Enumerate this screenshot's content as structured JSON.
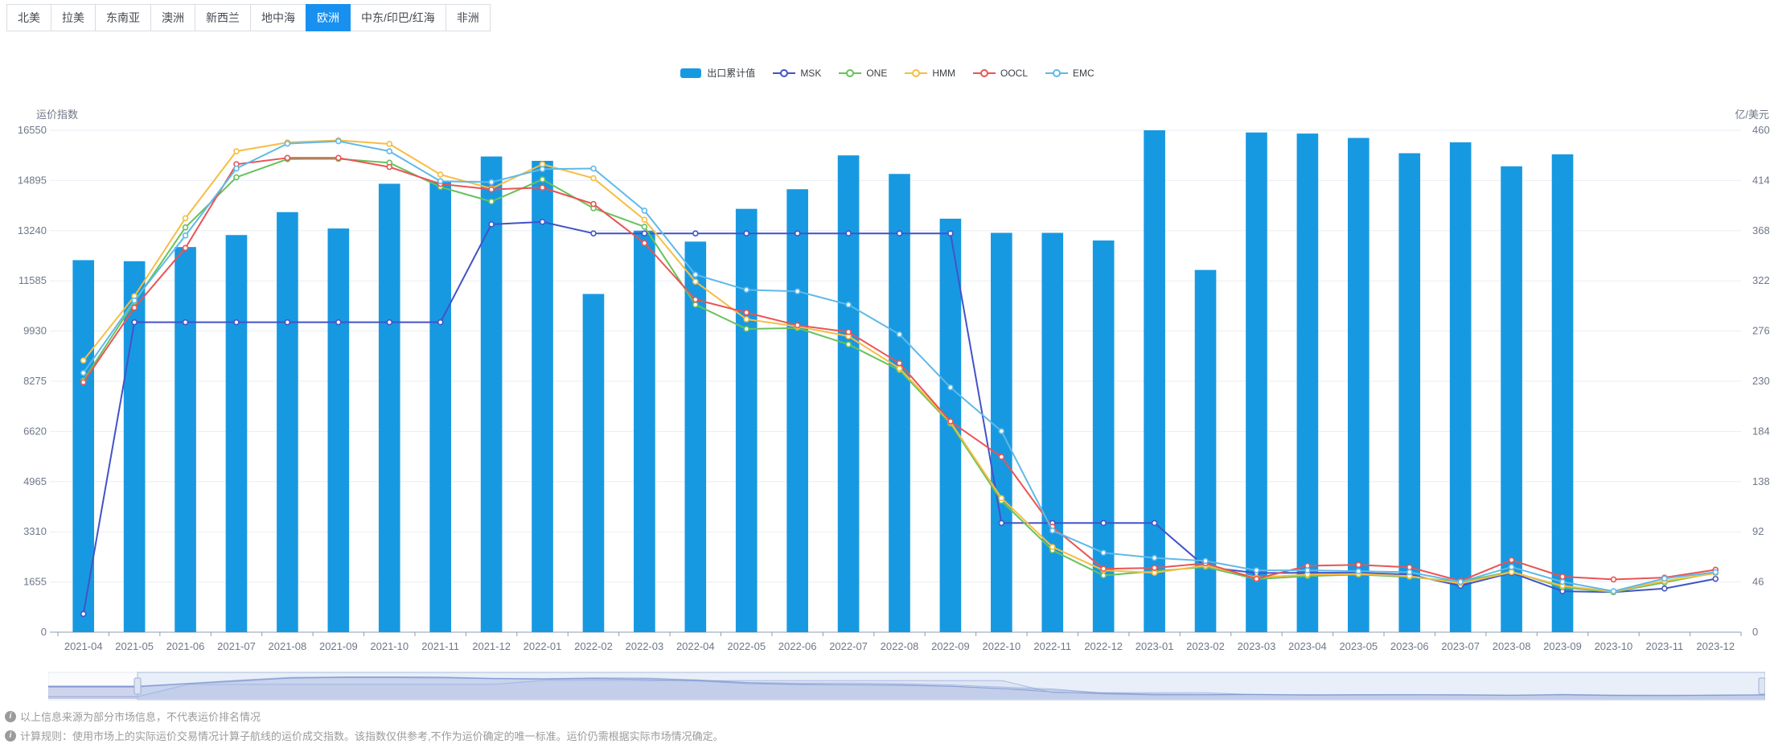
{
  "tabs": {
    "active_index": 6,
    "items": [
      {
        "label": "北美"
      },
      {
        "label": "拉美"
      },
      {
        "label": "东南亚"
      },
      {
        "label": "澳洲"
      },
      {
        "label": "新西兰"
      },
      {
        "label": "地中海"
      },
      {
        "label": "欧洲"
      },
      {
        "label": "中东/印巴/红海"
      },
      {
        "label": "非洲"
      }
    ]
  },
  "colors": {
    "tab_active_bg": "#1890f0",
    "bar": "#1799e1",
    "grid_line": "#e9edf4",
    "axis_line": "#8f9cb1",
    "axis_text": "#6e7889",
    "footnote_text": "#9b9b9b",
    "slider_window_fill": "rgba(190,208,240,0.30)",
    "slider_window_border": "#adbdda",
    "slider_line": "rgba(100,125,195,0.55)"
  },
  "chart_data": {
    "type": "bar+line",
    "categories": [
      "2021-04",
      "2021-05",
      "2021-06",
      "2021-07",
      "2021-08",
      "2021-09",
      "2021-10",
      "2021-11",
      "2021-12",
      "2022-01",
      "2022-02",
      "2022-03",
      "2022-04",
      "2022-05",
      "2022-06",
      "2022-07",
      "2022-08",
      "2022-09",
      "2022-10",
      "2022-11",
      "2022-12",
      "2023-01",
      "2023-02",
      "2023-03",
      "2023-04",
      "2023-05",
      "2023-06",
      "2023-07",
      "2023-08",
      "2023-09",
      "2023-10",
      "2023-11",
      "2023-12"
    ],
    "left_axis": {
      "title": "运价指数",
      "min": 0,
      "max": 16550,
      "ticks": [
        0,
        1655,
        3310,
        4965,
        6620,
        8275,
        9930,
        11585,
        13240,
        14895,
        16550
      ]
    },
    "right_axis": {
      "title": "亿/美元",
      "min": 0,
      "max": 460,
      "ticks": [
        0,
        46,
        92,
        138,
        184,
        230,
        276,
        322,
        368,
        414,
        460
      ]
    },
    "bar_series": {
      "name": "出口累计值",
      "axis": "right",
      "color": "#1799e1",
      "values": [
        341,
        340,
        353,
        364,
        385,
        370,
        411,
        413,
        436,
        432,
        310,
        368,
        358,
        388,
        406,
        437,
        420,
        379,
        366,
        366,
        359,
        460,
        332,
        458,
        457,
        453,
        439,
        449,
        427,
        438,
        null,
        null,
        null
      ]
    },
    "line_series": [
      {
        "name": "MSK",
        "color": "#4253c8",
        "values": [
          600,
          10220,
          10220,
          10220,
          10220,
          10220,
          10220,
          10220,
          13450,
          13530,
          13150,
          13150,
          13150,
          13150,
          13150,
          13150,
          13150,
          13150,
          3600,
          3600,
          3600,
          3600,
          2150,
          1950,
          1960,
          1960,
          1900,
          1530,
          1960,
          1350,
          1320,
          1440,
          1760
        ]
      },
      {
        "name": "ONE",
        "color": "#68c15c",
        "values": [
          8300,
          10890,
          13350,
          15000,
          15600,
          15610,
          15480,
          14680,
          14200,
          14930,
          13980,
          13370,
          10800,
          10000,
          10030,
          9490,
          8640,
          6880,
          4330,
          2700,
          1870,
          2010,
          2150,
          1750,
          1850,
          1900,
          1820,
          1660,
          2000,
          1480,
          1320,
          1640,
          1960
        ]
      },
      {
        "name": "HMM",
        "color": "#f6bd44",
        "values": [
          8960,
          11080,
          13650,
          15860,
          16150,
          16220,
          16100,
          15090,
          14630,
          15430,
          14970,
          13600,
          11560,
          10320,
          10080,
          9760,
          8700,
          6930,
          4420,
          2810,
          2040,
          1960,
          2200,
          1800,
          1900,
          1920,
          1850,
          1610,
          1980,
          1530,
          1340,
          1690,
          1940
        ]
      },
      {
        "name": "OOCL",
        "color": "#ea5454",
        "values": [
          8240,
          10700,
          12670,
          15430,
          15640,
          15640,
          15340,
          14780,
          14600,
          14660,
          14120,
          12830,
          10970,
          10540,
          10120,
          9900,
          8870,
          6950,
          5780,
          3475,
          2090,
          2120,
          2270,
          1760,
          2190,
          2220,
          2140,
          1690,
          2380,
          1830,
          1740,
          1800,
          2060
        ]
      },
      {
        "name": "EMC",
        "color": "#5fb9e8",
        "values": [
          8550,
          10940,
          13080,
          15290,
          16110,
          16190,
          15860,
          14870,
          14840,
          15270,
          15290,
          13900,
          11790,
          11290,
          11240,
          10800,
          9820,
          8070,
          6630,
          3350,
          2620,
          2450,
          2350,
          2040,
          2040,
          2010,
          1980,
          1660,
          2150,
          1660,
          1350,
          1770,
          1980
        ]
      }
    ],
    "legend_position": "top-center",
    "grid": true
  },
  "slider": {
    "window_start_pct": 5.2,
    "window_end_pct": 100
  },
  "footnotes": [
    {
      "icon": "info-circle-icon",
      "text": "以上信息来源为部分市场信息，不代表运价排名情况"
    },
    {
      "icon": "info-circle-icon",
      "text": "计算规则：使用市场上的实际运价交易情况计算子航线的运价成交指数。该指数仅供参考,不作为运价确定的唯一标准。运价仍需根据实际市场情况确定。"
    }
  ]
}
